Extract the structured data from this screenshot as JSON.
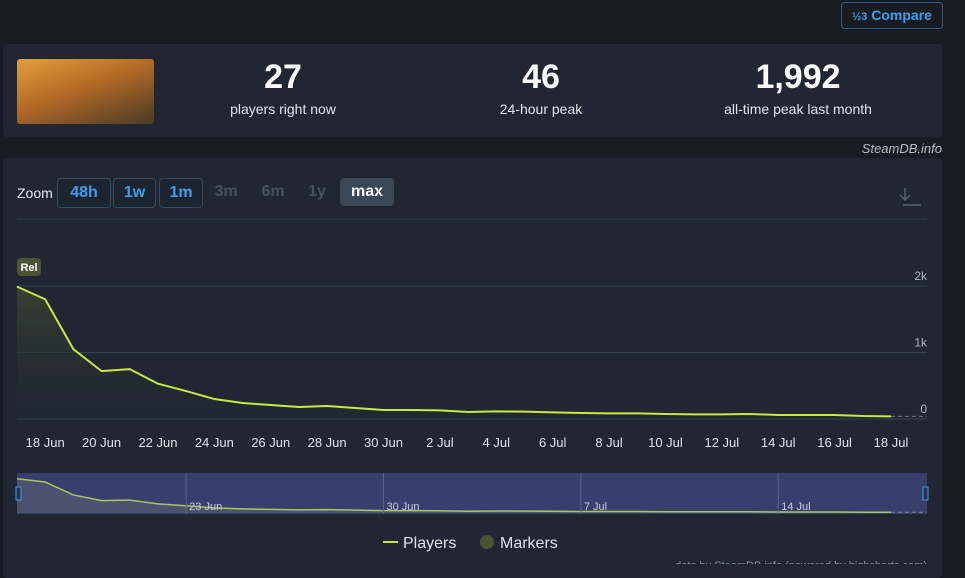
{
  "header": {
    "compare": "Compare"
  },
  "stats": [
    {
      "value": "27",
      "label": "players right now"
    },
    {
      "value": "46",
      "label": "24-hour peak"
    },
    {
      "value": "1,992",
      "label": "all-time peak last month"
    }
  ],
  "credit": "SteamDB.info",
  "zoom": {
    "label": "Zoom",
    "buttons": [
      "48h",
      "1w",
      "1m",
      "3m",
      "6m",
      "1y",
      "max"
    ]
  },
  "chart_data": {
    "type": "line",
    "categories": [
      null,
      "18 Jun",
      null,
      "20 Jun",
      null,
      "22 Jun",
      null,
      "24 Jun",
      null,
      "26 Jun",
      null,
      "28 Jun",
      null,
      "30 Jun",
      null,
      "2 Jul",
      null,
      "4 Jul",
      null,
      "6 Jul",
      null,
      "8 Jul",
      null,
      "10 Jul",
      null,
      "12 Jul",
      null,
      "14 Jul",
      null,
      "16 Jul",
      null,
      "18 Jul"
    ],
    "series": [
      {
        "name": "Players",
        "color": "#c6e93f",
        "values": [
          1990,
          1800,
          1050,
          720,
          750,
          530,
          420,
          300,
          240,
          210,
          180,
          195,
          165,
          135,
          135,
          130,
          105,
          115,
          110,
          100,
          90,
          85,
          85,
          75,
          70,
          70,
          75,
          60,
          60,
          60,
          45,
          40
        ]
      }
    ],
    "markers": {
      "name": "Markers",
      "color": "#4a5533",
      "labels": [
        "Rel"
      ]
    },
    "ylim": [
      0,
      2300
    ],
    "yticks": [
      0,
      {
        "value": 1000,
        "label": "1k"
      },
      {
        "value": 2000,
        "label": "2k"
      }
    ],
    "grid": true,
    "navigator": {
      "labels": [
        "23 Jun",
        "30 Jun",
        "7 Jul",
        "14 Jul"
      ]
    },
    "footer": "data by SteamDB.info (powered by highcharts.com)"
  }
}
